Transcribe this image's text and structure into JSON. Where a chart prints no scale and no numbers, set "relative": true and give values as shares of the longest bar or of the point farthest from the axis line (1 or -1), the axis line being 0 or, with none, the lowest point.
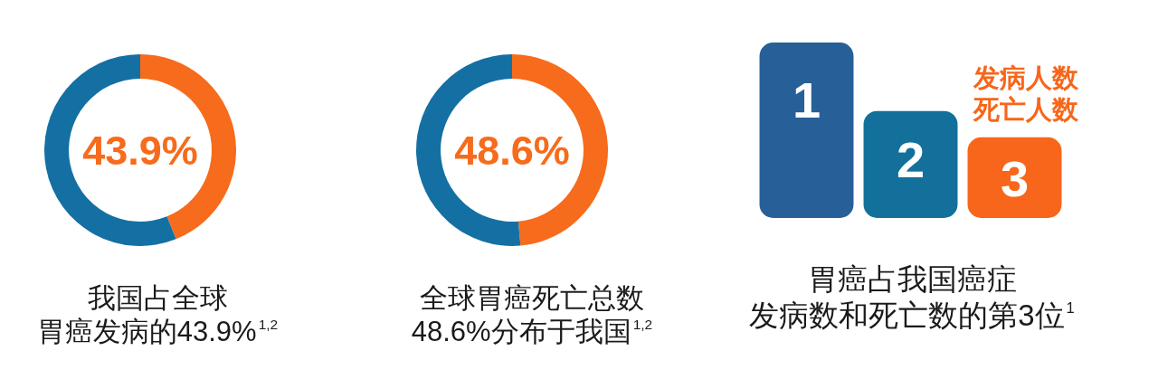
{
  "chart_data": [
    {
      "type": "donut",
      "title": "我国占全球胃癌发病的43.9%$^{1,2}$",
      "categories": [
        null,
        null
      ],
      "values": [
        43.9,
        56.1
      ],
      "colors": [
        "#f76b1c",
        "#1470a3"
      ],
      "annotations": [
        "43.9%"
      ]
    },
    {
      "type": "donut",
      "title": "全球胃癌死亡总数48.6%分布于我国$^{1,2}$",
      "categories": [
        null,
        null
      ],
      "values": [
        48.6,
        51.4
      ],
      "colors": [
        "#f76b1c",
        "#1470a3"
      ],
      "annotations": [
        "48.6%"
      ]
    },
    {
      "type": "bar",
      "relative": true,
      "title": "胃癌占我国癌症发病数和死亡数的第3位$^{1}$",
      "categories": [
        "1",
        "2",
        "3"
      ],
      "values": [
        1,
        0.61,
        0.46
      ],
      "colors": [
        "#275f98",
        "#13709b",
        "#f7661a"
      ],
      "annotations": [
        "发病人数",
        "死亡人数"
      ]
    }
  ]
}
